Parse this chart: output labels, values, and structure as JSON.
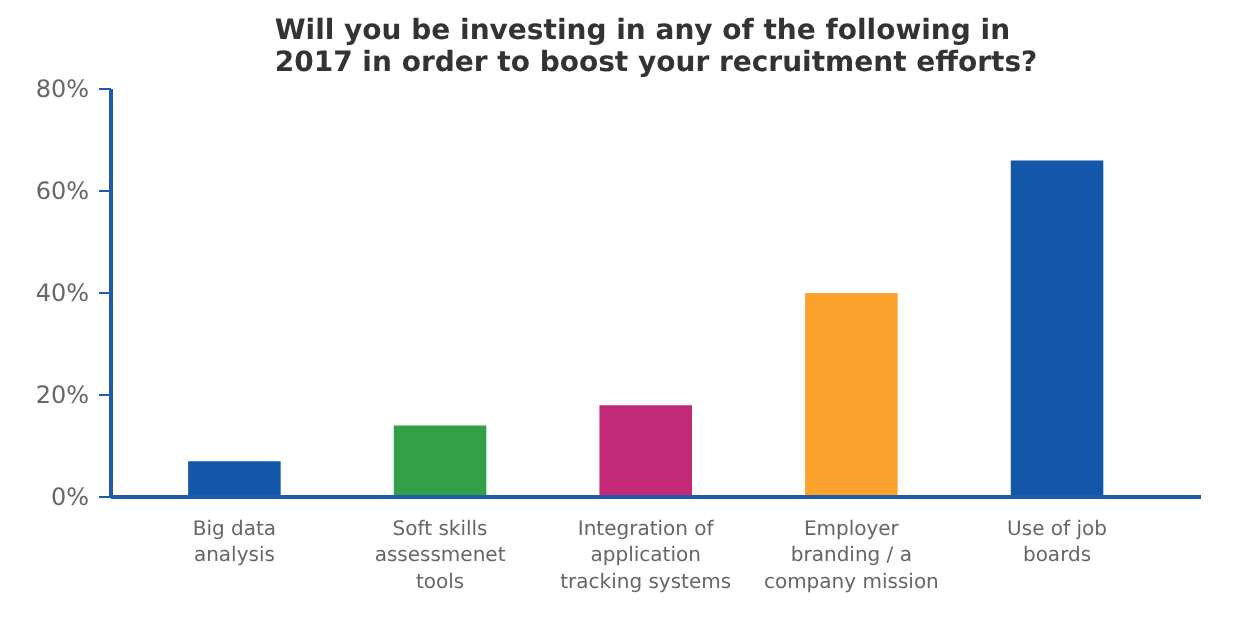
{
  "chart_data": {
    "type": "bar",
    "title": "Will you be investing in any of the following in 2017 in order to boost your recruitment efforts?",
    "categories": [
      "Big data analysis",
      "Soft skills assessmenet tools",
      "Integration of application tracking systems",
      "Employer branding / a company mission",
      "Use of job boards"
    ],
    "values": [
      7,
      14,
      18,
      40,
      66
    ],
    "colors": [
      "#1257a8",
      "#33a047",
      "#c22a78",
      "#fba32d",
      "#1257a8"
    ],
    "ylim": [
      0,
      80
    ],
    "yticks": [
      {
        "value": 0,
        "label": "0%"
      },
      {
        "value": 20,
        "label": "20%"
      },
      {
        "value": 40,
        "label": "40%"
      },
      {
        "value": 60,
        "label": "60%"
      },
      {
        "value": 80,
        "label": "80%"
      }
    ],
    "grid": false
  }
}
